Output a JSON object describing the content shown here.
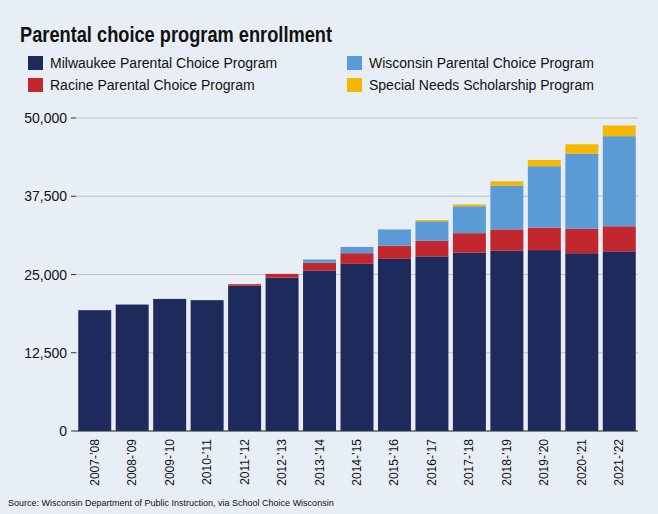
{
  "chart_data": {
    "type": "bar",
    "stacked": true,
    "grid": true,
    "legend": "top",
    "title": "Parental choice program enrollment",
    "source": "Source: Wisconsin Department of Public Instruction, via School Choice Wisconsin",
    "categories": [
      "2007-’08",
      "2008-’09",
      "2009-’10",
      "2010-’11",
      "2011-’12",
      "2012-’13",
      "2013-’14",
      "2014-’15",
      "2015-’16",
      "2016-’17",
      "2017-’18",
      "2018-’19",
      "2019-’20",
      "2020-’21",
      "2021-’22"
    ],
    "series": [
      {
        "name": "Milwaukee Parental Choice Program",
        "color": "#1f2a5c",
        "values": [
          19300,
          20200,
          21100,
          20900,
          23200,
          24500,
          25600,
          26700,
          27500,
          27900,
          28500,
          28800,
          28900,
          28400,
          28700
        ]
      },
      {
        "name": "Racine Parental Choice Program",
        "color": "#c1272d",
        "values": [
          0,
          0,
          0,
          0,
          250,
          600,
          1300,
          1700,
          2100,
          2500,
          3100,
          3400,
          3600,
          3900,
          4000
        ]
      },
      {
        "name": "Wisconsin Parental Choice Program",
        "color": "#5b9bd5",
        "values": [
          0,
          0,
          0,
          0,
          0,
          0,
          500,
          1000,
          2600,
          3100,
          4300,
          7000,
          9800,
          12000,
          14400
        ]
      },
      {
        "name": "Special Needs Scholarship Program",
        "color": "#f5b800",
        "values": [
          0,
          0,
          0,
          0,
          0,
          0,
          0,
          0,
          0,
          200,
          300,
          700,
          1000,
          1500,
          1700
        ]
      }
    ],
    "ylim": [
      0,
      50000
    ],
    "yticks": [
      0,
      {
        "value": 12500,
        "label": "12,500"
      },
      {
        "value": 25000,
        "label": "25,000"
      },
      {
        "value": 37500,
        "label": "37,500"
      },
      {
        "value": 50000,
        "label": "50,000"
      }
    ]
  }
}
